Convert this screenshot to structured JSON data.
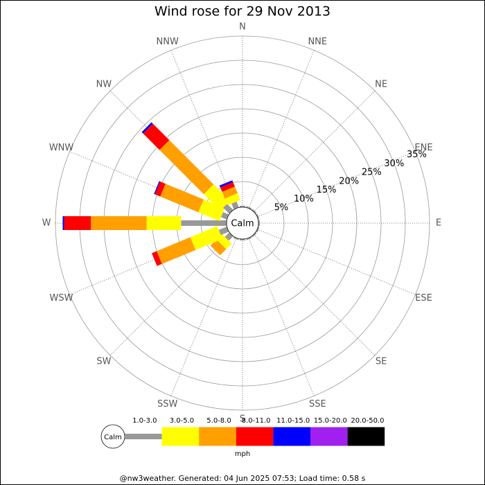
{
  "chart_data": {
    "type": "windrose",
    "title": "Wind rose for 29 Nov 2013",
    "directions": [
      "N",
      "NNE",
      "NE",
      "ENE",
      "E",
      "ESE",
      "SE",
      "SSE",
      "S",
      "SSW",
      "SW",
      "WSW",
      "W",
      "WNW",
      "NW",
      "NNW"
    ],
    "rlim": [
      0,
      35
    ],
    "rticks": [
      {
        "value": 5,
        "label": "5%"
      },
      {
        "value": 10,
        "label": "10%"
      },
      {
        "value": 15,
        "label": "15%"
      },
      {
        "value": 20,
        "label": "20%"
      },
      {
        "value": 25,
        "label": "25%"
      },
      {
        "value": 30,
        "label": "30%"
      },
      {
        "value": 35,
        "label": "35%"
      }
    ],
    "calm_label": "Calm",
    "unit_label": "mph",
    "series": [
      {
        "name": "1.0-3.0",
        "color": "#999999",
        "values": [
          0,
          0,
          0,
          0,
          0,
          0,
          0,
          0,
          0,
          0,
          1.0,
          1.5,
          9.1,
          1.0,
          1.5,
          1.0
        ]
      },
      {
        "name": "3.0-5.0",
        "color": "#ffff00",
        "values": [
          0,
          0,
          0,
          0,
          0,
          0,
          0,
          0,
          0,
          0,
          1.6,
          6.0,
          7.1,
          4.7,
          4.8,
          1.5
        ]
      },
      {
        "name": "5.0-8.0",
        "color": "#ffa000",
        "values": [
          0,
          0,
          0,
          0,
          0,
          0,
          0,
          0,
          0,
          0,
          1.8,
          7.5,
          11.5,
          8.5,
          12.9,
          1.5
        ]
      },
      {
        "name": "8.0-11.0",
        "color": "#ff0000",
        "values": [
          0,
          0,
          0,
          0,
          0,
          0,
          0,
          0,
          0,
          0,
          0,
          1.1,
          5.5,
          1.2,
          4.8,
          1.0
        ]
      },
      {
        "name": "11.0-15.0",
        "color": "#0000ff",
        "values": [
          0,
          0,
          0,
          0,
          0,
          0,
          0,
          0,
          0,
          0,
          0,
          0,
          0.3,
          0.2,
          0.4,
          0.4
        ]
      },
      {
        "name": "15.0-20.0",
        "color": "#a020f0",
        "values": [
          0,
          0,
          0,
          0,
          0,
          0,
          0,
          0,
          0,
          0,
          0,
          0,
          0,
          0,
          0,
          0
        ]
      },
      {
        "name": "20.0-50.0",
        "color": "#000000",
        "values": [
          0,
          0,
          0,
          0,
          0,
          0,
          0,
          0,
          0,
          0,
          0,
          0,
          0,
          0,
          0,
          0
        ]
      }
    ],
    "footer": "@nw3weather. Generated: 04 Jun 2025 07:53; Load time: 0.58 s"
  }
}
